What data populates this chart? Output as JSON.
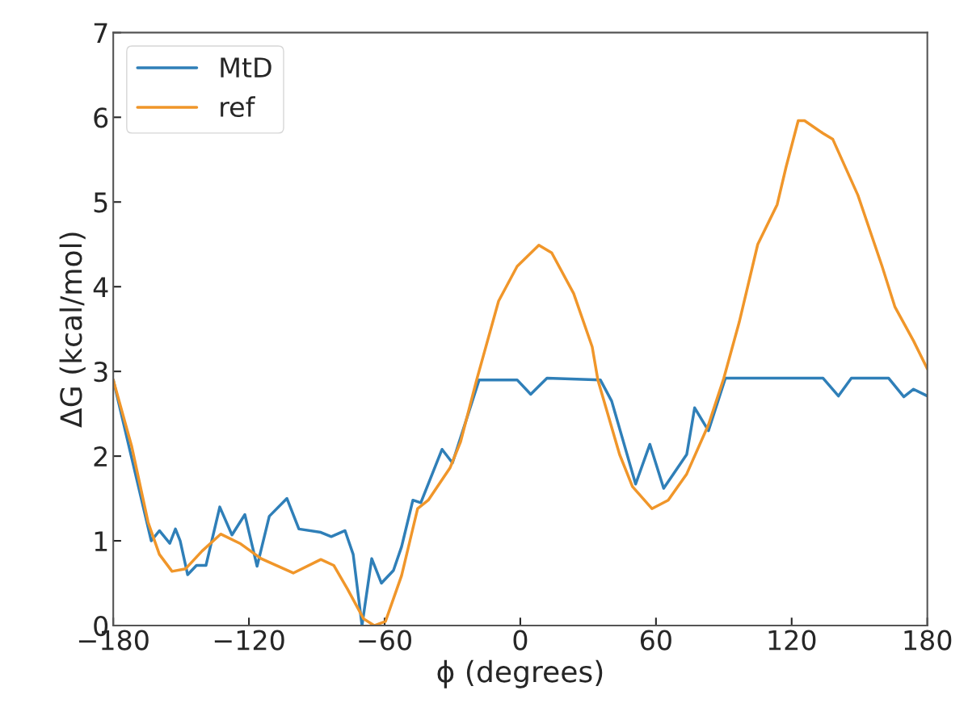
{
  "chart_data": {
    "type": "line",
    "xlabel": "ϕ (degrees)",
    "ylabel": "ΔG (kcal/mol)",
    "xlim": [
      -180,
      180
    ],
    "ylim": [
      0,
      7
    ],
    "xticks": [
      {
        "value": -180,
        "label": "−180"
      },
      {
        "value": -120,
        "label": "−120"
      },
      {
        "value": -60,
        "label": "−60"
      },
      0,
      60,
      120,
      180
    ],
    "yticks": [
      0,
      1,
      2,
      3,
      4,
      5,
      6,
      7
    ],
    "grid": false,
    "legend": "top left",
    "line_style": "solid",
    "series": [
      {
        "name": "MtD",
        "color": "#2f7fb8",
        "x": [
          -180,
          -163.2,
          -159.6,
          -155,
          -152.5,
          -150.4,
          -147.1,
          -143.2,
          -139,
          -132.9,
          -127.5,
          -121.8,
          -116.4,
          -111,
          -103.2,
          -97.9,
          -88.2,
          -83.6,
          -77.5,
          -73.9,
          -70,
          -65.7,
          -61.4,
          -56.1,
          -52.5,
          -47.5,
          -44,
          -34.6,
          -30,
          -18.2,
          -1.4,
          4.6,
          11.8,
          35.4,
          40.4,
          51,
          57.3,
          63.4,
          73.6,
          77.1,
          83.2,
          90.7,
          133.9,
          140.7,
          146.4,
          162.9,
          169.6,
          173.9,
          180
        ],
        "values": [
          2.9,
          1.0,
          1.12,
          0.97,
          1.14,
          1.0,
          0.6,
          0.71,
          0.71,
          1.4,
          1.07,
          1.31,
          0.7,
          1.29,
          1.5,
          1.14,
          1.1,
          1.05,
          1.12,
          0.84,
          0.0,
          0.79,
          0.5,
          0.65,
          0.93,
          1.48,
          1.45,
          2.08,
          1.92,
          2.9,
          2.9,
          2.73,
          2.92,
          2.9,
          2.65,
          1.67,
          2.14,
          1.62,
          2.02,
          2.57,
          2.3,
          2.92,
          2.92,
          2.71,
          2.92,
          2.92,
          2.7,
          2.79,
          2.71
        ]
      },
      {
        "name": "ref",
        "color": "#f0962a",
        "x": [
          -180,
          -171.8,
          -164.6,
          -159.6,
          -154,
          -148,
          -140.7,
          -132.5,
          -124,
          -114.6,
          -100.4,
          -88.2,
          -82.5,
          -76.4,
          -69.3,
          -64.6,
          -59.6,
          -52.5,
          -45.4,
          -40.7,
          -31.1,
          -26.4,
          -19.3,
          -9.6,
          -1.4,
          8.2,
          13.9,
          23.6,
          31.8,
          34.3,
          43.9,
          49.6,
          58.2,
          65.4,
          73.6,
          83.2,
          90,
          96.8,
          105,
          113.6,
          117.5,
          122.9,
          125.7,
          133.9,
          138.2,
          149.3,
          160,
          165.7,
          173.9,
          180
        ],
        "values": [
          2.9,
          2.11,
          1.22,
          0.84,
          0.64,
          0.67,
          0.88,
          1.08,
          0.97,
          0.79,
          0.62,
          0.78,
          0.71,
          0.43,
          0.08,
          0.0,
          0.05,
          0.59,
          1.38,
          1.48,
          1.86,
          2.17,
          2.9,
          3.83,
          4.24,
          4.49,
          4.4,
          3.92,
          3.29,
          2.9,
          2.02,
          1.64,
          1.38,
          1.48,
          1.79,
          2.37,
          2.92,
          3.58,
          4.5,
          4.97,
          5.41,
          5.96,
          5.96,
          5.81,
          5.74,
          5.08,
          4.24,
          3.76,
          3.36,
          3.03
        ]
      }
    ]
  }
}
